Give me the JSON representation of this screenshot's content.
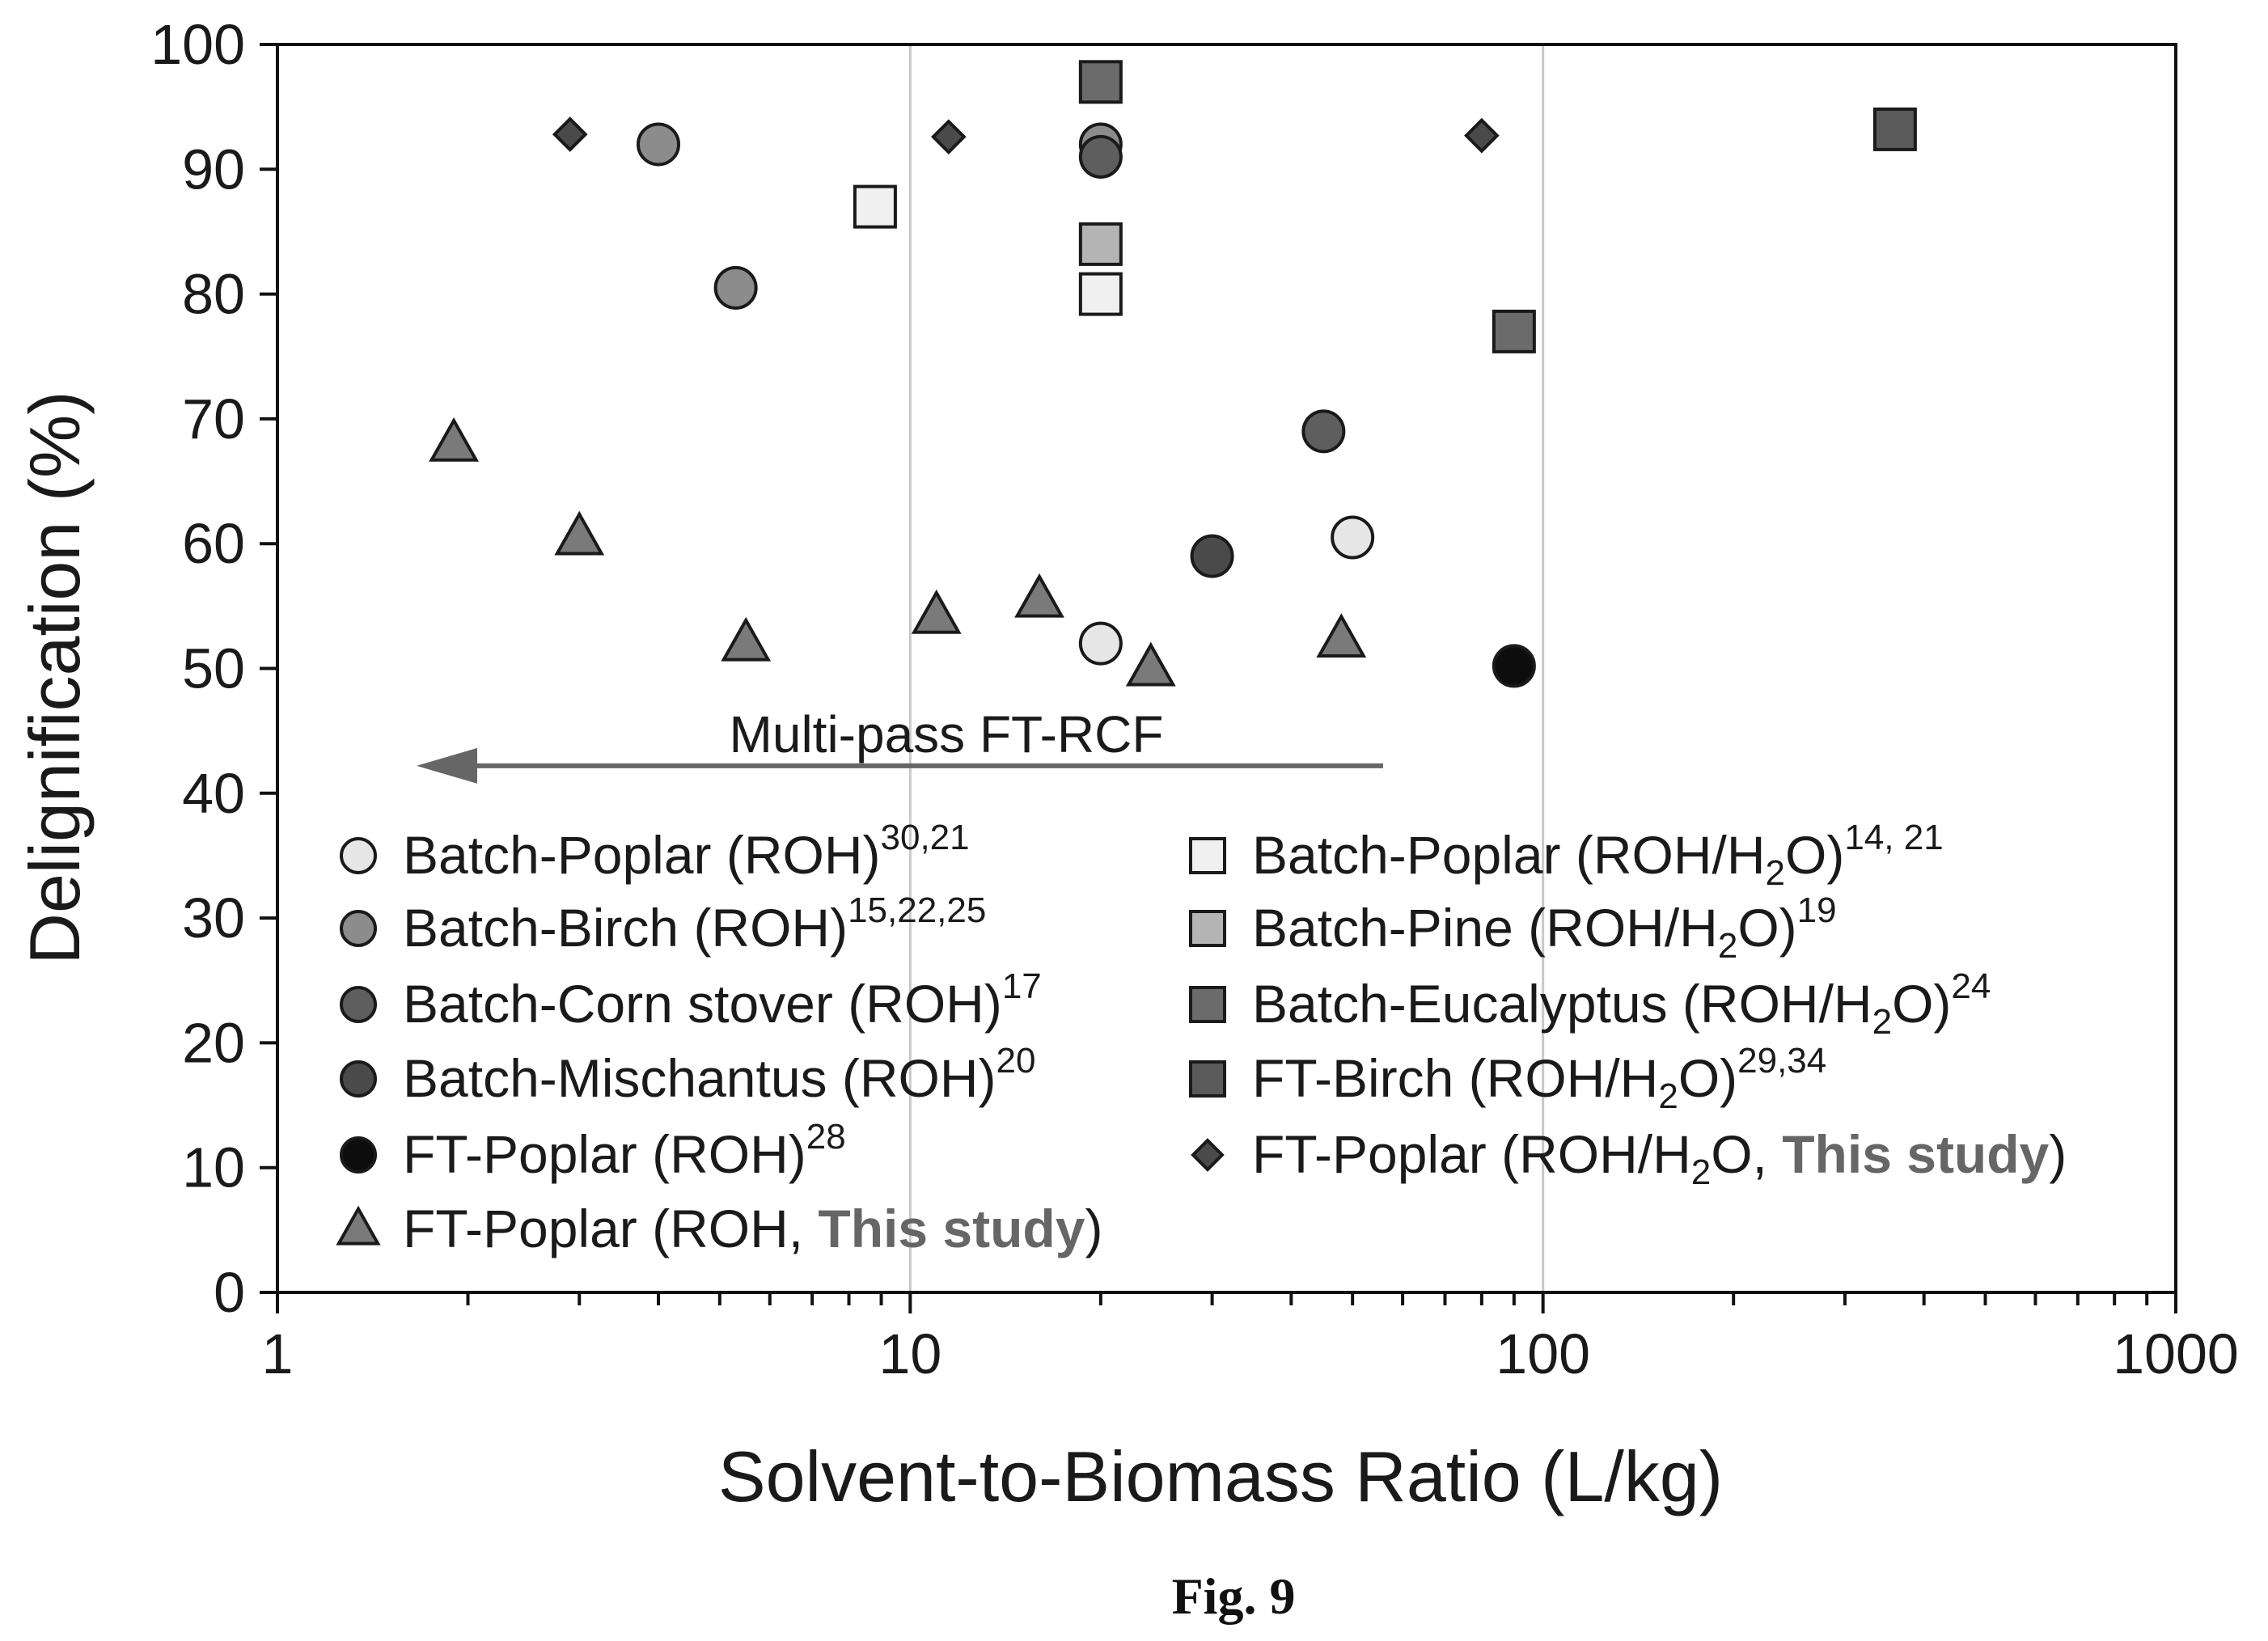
{
  "figure_caption": "Fig. 9",
  "annotation": "Multi-pass FT-RCF",
  "chart_data": {
    "type": "scatter",
    "xlabel": "Solvent-to-Biomass Ratio (L/kg)",
    "ylabel": "Delignification (%)",
    "x_scale": "log",
    "xlim": [
      1,
      1000
    ],
    "ylim": [
      0,
      100
    ],
    "x_ticks": [
      1,
      10,
      100,
      1000
    ],
    "x_tick_labels": [
      "1",
      "10",
      "100",
      "1000"
    ],
    "y_ticks": [
      0,
      10,
      20,
      30,
      40,
      50,
      60,
      70,
      80,
      90,
      100
    ],
    "y_tick_labels": [
      "0",
      "10",
      "20",
      "30",
      "40",
      "50",
      "60",
      "70",
      "80",
      "90",
      "100"
    ],
    "grid": "vertical major gridlines at 10 and 100",
    "legend_position": "lower-left, two columns",
    "highlight_text": "This study",
    "series": [
      {
        "name_parts": [
          "Batch-Poplar (ROH)",
          "30,21"
        ],
        "marker": "circle",
        "fill": "#e6e6e6",
        "points": [
          [
            20,
            52
          ],
          [
            50,
            60.5
          ]
        ]
      },
      {
        "name_parts": [
          "Batch-Birch (ROH)",
          "15,22,25"
        ],
        "marker": "circle",
        "fill": "#8c8c8c",
        "points": [
          [
            4,
            92
          ],
          [
            5.3,
            80.5
          ],
          [
            20,
            92
          ]
        ]
      },
      {
        "name_parts": [
          "Batch-Corn stover (ROH)",
          "17"
        ],
        "marker": "circle",
        "fill": "#5e5e5e",
        "points": [
          [
            20,
            91
          ],
          [
            45,
            69
          ]
        ]
      },
      {
        "name_parts": [
          "Batch-Mischantus (ROH)",
          "20"
        ],
        "marker": "circle",
        "fill": "#4a4a4a",
        "points": [
          [
            30,
            59
          ]
        ]
      },
      {
        "name_parts": [
          "FT-Poplar (ROH)",
          "28"
        ],
        "marker": "circle",
        "fill": "#0d0d0d",
        "points": [
          [
            90,
            50.2
          ]
        ]
      },
      {
        "name_parts": [
          "FT-Poplar (ROH, ",
          "This study",
          ")"
        ],
        "marker": "triangle",
        "fill": "#7a7a7a",
        "points": [
          [
            1.9,
            68
          ],
          [
            3,
            60.5
          ],
          [
            5.5,
            52
          ],
          [
            11,
            54.2
          ],
          [
            16,
            55.5
          ],
          [
            24,
            50
          ],
          [
            48,
            52.3
          ]
        ]
      },
      {
        "name_parts": [
          "Batch-Poplar (ROH/H",
          "2",
          "O)",
          "14, 21"
        ],
        "marker": "square",
        "fill": "#f0f0f0",
        "points": [
          [
            8.8,
            87
          ],
          [
            20,
            80
          ]
        ]
      },
      {
        "name_parts": [
          "Batch-Pine (ROH/H",
          "2",
          "O)",
          "19"
        ],
        "marker": "square",
        "fill": "#b4b4b4",
        "points": [
          [
            20,
            84
          ]
        ]
      },
      {
        "name_parts": [
          "Batch-Eucalyptus (ROH/H",
          "2",
          "O)",
          "24"
        ],
        "marker": "square",
        "fill": "#6b6b6b",
        "points": [
          [
            20,
            97
          ],
          [
            90,
            77
          ]
        ]
      },
      {
        "name_parts": [
          "FT-Birch (ROH/H",
          "2",
          "O)",
          "29,34"
        ],
        "marker": "square",
        "fill": "#5a5a5a",
        "points": [
          [
            360,
            93.2
          ]
        ]
      },
      {
        "name_parts": [
          "FT-Poplar (ROH/H",
          "2",
          "O, ",
          "This study",
          ")"
        ],
        "marker": "diamond",
        "fill": "#4a4a4a",
        "points": [
          [
            2.9,
            92.8
          ],
          [
            11.5,
            92.6
          ],
          [
            80,
            92.7
          ]
        ]
      }
    ]
  }
}
